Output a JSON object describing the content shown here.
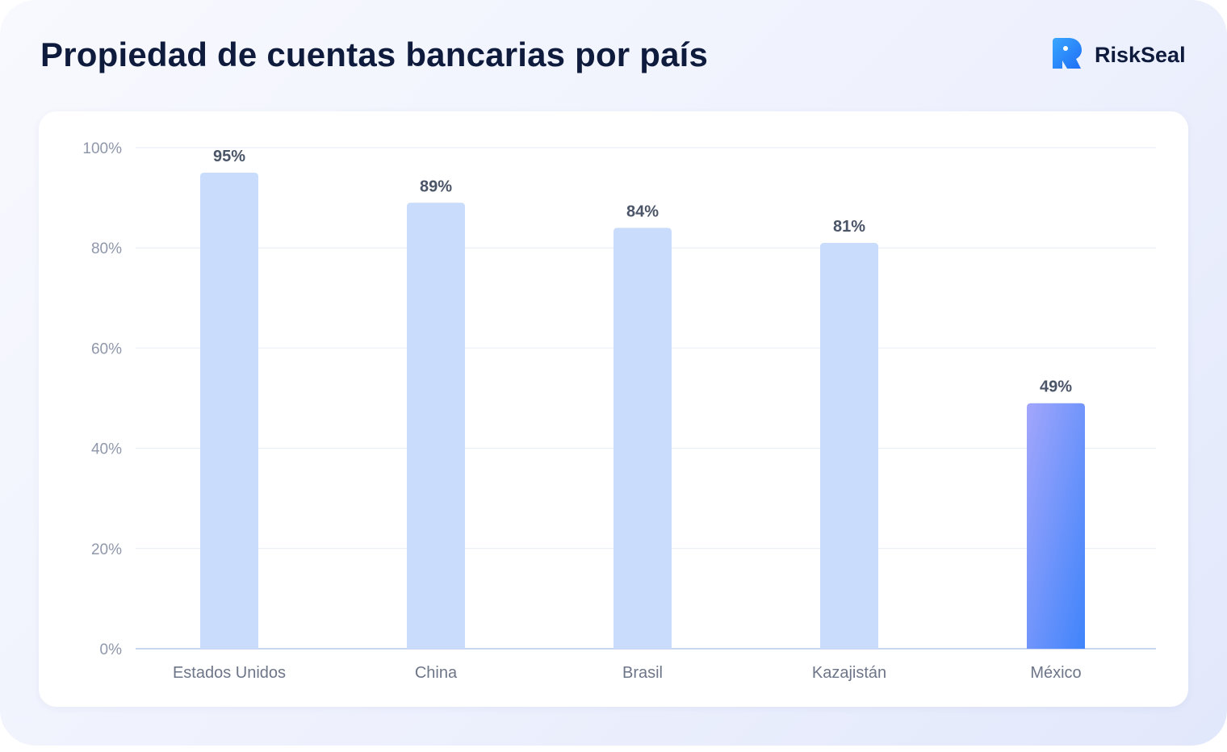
{
  "title": "Propiedad de cuentas bancarias por país",
  "brand": {
    "name": "RiskSeal",
    "icon": "riskseal-logo-icon"
  },
  "colors": {
    "bar": "#c9dcfb",
    "bar_highlight_top": "#a3a6fb",
    "bar_highlight_bottom": "#3f84fb",
    "grid": "#eef1f7",
    "baseline": "#c9d6f1"
  },
  "chart_data": {
    "type": "bar",
    "title": "Propiedad de cuentas bancarias por país",
    "categories": [
      "Estados Unidos",
      "China",
      "Brasil",
      "Kazajistán",
      "México"
    ],
    "values": [
      95,
      89,
      84,
      81,
      49
    ],
    "value_labels": [
      "95%",
      "89%",
      "84%",
      "81%",
      "49%"
    ],
    "highlight": "México",
    "ylim": [
      0,
      100
    ],
    "yticks": [
      0,
      20,
      40,
      60,
      80,
      100
    ],
    "ytick_labels": [
      "0%",
      "20%",
      "40%",
      "60%",
      "80%",
      "100%"
    ],
    "xlabel": "",
    "ylabel": "",
    "grid": true,
    "legend": "none"
  }
}
